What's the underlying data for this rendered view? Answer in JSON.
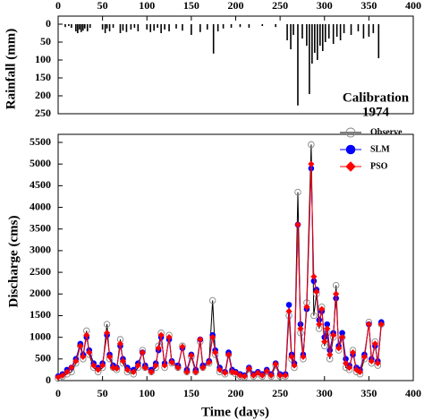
{
  "chart_data": [
    {
      "type": "bar",
      "y_label": "Rainfall (mm)",
      "annotation": [
        "Calibration",
        "1974"
      ],
      "color": "#000000",
      "x_axis_position": "top",
      "y_inverted": true,
      "xlim": [
        0,
        400
      ],
      "xticks": [
        0,
        50,
        100,
        150,
        200,
        250,
        300,
        350,
        400
      ],
      "ylim": [
        0,
        250
      ],
      "yticks": [
        0,
        50,
        100,
        150,
        200,
        250
      ],
      "x": [
        8,
        12,
        15,
        20,
        22,
        24,
        26,
        28,
        30,
        33,
        36,
        50,
        53,
        55,
        58,
        62,
        70,
        73,
        77,
        82,
        86,
        90,
        100,
        104,
        108,
        112,
        116,
        120,
        125,
        133,
        140,
        150,
        160,
        168,
        175,
        180,
        186,
        195,
        205,
        215,
        230,
        245,
        258,
        262,
        265,
        270,
        275,
        280,
        283,
        286,
        289,
        292,
        295,
        298,
        301,
        305,
        310,
        314,
        318,
        322,
        330,
        338,
        344,
        350,
        355,
        361
      ],
      "values": [
        8,
        5,
        10,
        20,
        25,
        15,
        22,
        18,
        12,
        20,
        10,
        15,
        25,
        12,
        20,
        10,
        25,
        18,
        22,
        15,
        10,
        20,
        15,
        22,
        18,
        10,
        25,
        15,
        20,
        12,
        18,
        30,
        22,
        15,
        82,
        20,
        12,
        10,
        8,
        10,
        5,
        8,
        45,
        70,
        30,
        227,
        40,
        60,
        195,
        110,
        80,
        100,
        60,
        75,
        50,
        40,
        55,
        35,
        45,
        25,
        30,
        20,
        40,
        35,
        25,
        95
      ]
    },
    {
      "type": "line",
      "x_label": "Time (days)",
      "y_label": "Discharge (cms)",
      "legend": "upper right",
      "xlim": [
        0,
        400
      ],
      "xticks": [
        0,
        50,
        100,
        150,
        200,
        250,
        300,
        350,
        400
      ],
      "ylim": [
        0,
        5500
      ],
      "yticks": [
        0,
        500,
        1000,
        1500,
        2000,
        2500,
        3000,
        3500,
        4000,
        4500,
        5000,
        5500
      ],
      "x": [
        0,
        5,
        10,
        15,
        20,
        25,
        28,
        32,
        35,
        40,
        45,
        50,
        55,
        58,
        62,
        66,
        70,
        73,
        78,
        85,
        90,
        95,
        98,
        105,
        110,
        113,
        116,
        120,
        125,
        128,
        135,
        140,
        145,
        150,
        155,
        160,
        163,
        170,
        174,
        177,
        182,
        188,
        192,
        196,
        200,
        205,
        210,
        215,
        220,
        225,
        230,
        235,
        240,
        245,
        250,
        256,
        260,
        263,
        266,
        270,
        273,
        276,
        280,
        285,
        288,
        291,
        294,
        297,
        300,
        303,
        306,
        310,
        313,
        316,
        320,
        324,
        328,
        332,
        336,
        340,
        345,
        350,
        353,
        357,
        360,
        364
      ],
      "series": [
        {
          "name": "Observe",
          "color": "#000000",
          "marker": "open-circle",
          "marker_color": "#888888",
          "values": [
            50,
            100,
            150,
            200,
            400,
            800,
            500,
            1150,
            600,
            300,
            200,
            300,
            1300,
            500,
            300,
            250,
            950,
            400,
            200,
            150,
            300,
            700,
            300,
            200,
            300,
            800,
            1100,
            300,
            1050,
            400,
            300,
            800,
            200,
            550,
            200,
            900,
            300,
            400,
            1850,
            600,
            200,
            150,
            600,
            200,
            150,
            100,
            80,
            250,
            100,
            150,
            100,
            200,
            100,
            350,
            100,
            100,
            1500,
            500,
            300,
            4350,
            1100,
            500,
            1800,
            5450,
            1500,
            2000,
            1200,
            1700,
            800,
            1100,
            500,
            1000,
            2200,
            700,
            1000,
            300,
            250,
            700,
            200,
            150,
            500,
            1350,
            400,
            900,
            350,
            1300
          ]
        },
        {
          "name": "SLM",
          "color": "#0000ff",
          "marker": "circle",
          "marker_color": "#0000ff",
          "values": [
            100,
            150,
            250,
            300,
            500,
            850,
            600,
            1000,
            700,
            400,
            300,
            400,
            1050,
            600,
            350,
            300,
            800,
            500,
            300,
            250,
            400,
            650,
            350,
            250,
            400,
            700,
            1000,
            400,
            950,
            450,
            350,
            750,
            250,
            600,
            250,
            950,
            350,
            450,
            1050,
            700,
            300,
            200,
            650,
            250,
            200,
            150,
            120,
            300,
            150,
            200,
            150,
            250,
            150,
            400,
            150,
            150,
            1750,
            600,
            400,
            3600,
            1300,
            600,
            1650,
            4900,
            2300,
            2100,
            1400,
            1600,
            1000,
            1300,
            700,
            1100,
            1900,
            800,
            1100,
            500,
            350,
            600,
            300,
            250,
            600,
            1300,
            500,
            800,
            450,
            1350
          ]
        },
        {
          "name": "PSO",
          "color": "#ff0000",
          "marker": "diamond",
          "marker_color": "#ff0000",
          "values": [
            80,
            120,
            200,
            300,
            450,
            800,
            550,
            1050,
            650,
            350,
            250,
            350,
            1100,
            550,
            300,
            280,
            850,
            450,
            250,
            200,
            350,
            650,
            300,
            200,
            350,
            750,
            1050,
            350,
            1000,
            420,
            300,
            780,
            200,
            580,
            200,
            950,
            300,
            420,
            1000,
            650,
            250,
            180,
            600,
            200,
            180,
            120,
            100,
            280,
            120,
            180,
            120,
            220,
            120,
            380,
            120,
            120,
            1600,
            550,
            350,
            3600,
            1200,
            550,
            1700,
            5000,
            2400,
            2050,
            1300,
            1650,
            900,
            1200,
            600,
            1050,
            2000,
            750,
            1000,
            400,
            300,
            650,
            250,
            200,
            550,
            1300,
            450,
            850,
            400,
            1300
          ]
        }
      ]
    }
  ]
}
